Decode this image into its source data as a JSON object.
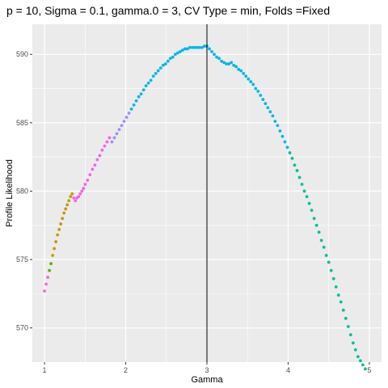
{
  "chart_data": {
    "type": "scatter",
    "title": "p = 10, Sigma = 0.1, gamma.0 = 3, CV Type = min, Folds =Fixed",
    "xlabel": "Gamma",
    "ylabel": "Profile Likelihood",
    "xlim": [
      0.85,
      5.15
    ],
    "ylim": [
      567.5,
      592.2
    ],
    "x_ticks": [
      1,
      2,
      3,
      4,
      5
    ],
    "y_ticks": [
      570,
      575,
      580,
      585,
      590
    ],
    "x_tick_labels": [
      "1",
      "2",
      "3",
      "4",
      "5"
    ],
    "y_tick_labels": [
      "570",
      "575",
      "580",
      "585",
      "590"
    ],
    "grid": true,
    "legend": "none",
    "vline": {
      "x": 3,
      "color": "#000000"
    },
    "panel_background": "#ebebeb",
    "gridline_color": "#ffffff",
    "series": [
      {
        "color": "#f066ea",
        "points": [
          [
            1.0,
            572.7
          ],
          [
            1.02,
            573.2
          ],
          [
            1.04,
            573.7
          ]
        ]
      },
      {
        "color": "#53b400",
        "points": [
          [
            1.06,
            574.2
          ],
          [
            1.08,
            574.7
          ]
        ]
      },
      {
        "color": "#c49a00",
        "points": [
          [
            1.1,
            575.3
          ],
          [
            1.12,
            575.8
          ],
          [
            1.14,
            576.3
          ],
          [
            1.16,
            576.8
          ],
          [
            1.18,
            577.2
          ],
          [
            1.2,
            577.6
          ],
          [
            1.22,
            578.0
          ],
          [
            1.24,
            578.4
          ],
          [
            1.26,
            578.7
          ],
          [
            1.28,
            579.0
          ],
          [
            1.3,
            579.3
          ],
          [
            1.32,
            579.6
          ],
          [
            1.34,
            579.8
          ]
        ]
      },
      {
        "color": "#f066ea",
        "points": [
          [
            1.36,
            579.5
          ],
          [
            1.38,
            579.3
          ],
          [
            1.4,
            579.5
          ],
          [
            1.42,
            579.6
          ],
          [
            1.44,
            579.8
          ],
          [
            1.46,
            580.0
          ],
          [
            1.48,
            580.2
          ],
          [
            1.5,
            580.5
          ],
          [
            1.53,
            580.8
          ],
          [
            1.56,
            581.2
          ],
          [
            1.59,
            581.6
          ],
          [
            1.62,
            581.9
          ],
          [
            1.65,
            582.3
          ],
          [
            1.68,
            582.6
          ],
          [
            1.71,
            583.0
          ],
          [
            1.74,
            583.3
          ],
          [
            1.77,
            583.6
          ],
          [
            1.8,
            583.9
          ]
        ]
      },
      {
        "color": "#a58aff",
        "points": [
          [
            1.83,
            583.6
          ],
          [
            1.86,
            583.9
          ],
          [
            1.89,
            584.2
          ],
          [
            1.92,
            584.5
          ],
          [
            1.95,
            584.8
          ],
          [
            1.98,
            585.1
          ],
          [
            2.01,
            585.4
          ],
          [
            2.04,
            585.7
          ]
        ]
      },
      {
        "color": "#00b6eb",
        "points": [
          [
            2.07,
            586.0
          ],
          [
            2.1,
            586.3
          ],
          [
            2.13,
            586.6
          ],
          [
            2.16,
            586.9
          ],
          [
            2.19,
            587.1
          ],
          [
            2.22,
            587.4
          ],
          [
            2.25,
            587.7
          ],
          [
            2.28,
            587.9
          ],
          [
            2.31,
            588.1
          ],
          [
            2.34,
            588.4
          ],
          [
            2.37,
            588.6
          ],
          [
            2.4,
            588.8
          ],
          [
            2.43,
            589.0
          ],
          [
            2.46,
            589.2
          ],
          [
            2.49,
            589.3
          ],
          [
            2.52,
            589.5
          ],
          [
            2.55,
            589.7
          ],
          [
            2.58,
            589.8
          ],
          [
            2.61,
            590.0
          ],
          [
            2.64,
            590.1
          ],
          [
            2.67,
            590.2
          ],
          [
            2.7,
            590.3
          ],
          [
            2.73,
            590.4
          ],
          [
            2.76,
            590.4
          ],
          [
            2.79,
            590.5
          ],
          [
            2.82,
            590.5
          ],
          [
            2.85,
            590.5
          ],
          [
            2.88,
            590.5
          ],
          [
            2.91,
            590.5
          ],
          [
            2.94,
            590.5
          ],
          [
            2.97,
            590.6
          ],
          [
            3.0,
            590.6
          ],
          [
            3.03,
            590.4
          ],
          [
            3.06,
            590.2
          ],
          [
            3.09,
            590.0
          ],
          [
            3.12,
            589.8
          ],
          [
            3.15,
            589.7
          ],
          [
            3.18,
            589.5
          ],
          [
            3.21,
            589.4
          ],
          [
            3.24,
            589.3
          ],
          [
            3.27,
            589.3
          ],
          [
            3.3,
            589.4
          ],
          [
            3.33,
            589.2
          ],
          [
            3.36,
            589.1
          ],
          [
            3.39,
            588.9
          ],
          [
            3.42,
            588.8
          ],
          [
            3.45,
            588.6
          ],
          [
            3.48,
            588.4
          ],
          [
            3.51,
            588.2
          ],
          [
            3.54,
            588.0
          ],
          [
            3.57,
            587.8
          ],
          [
            3.6,
            587.5
          ],
          [
            3.63,
            587.3
          ],
          [
            3.66,
            587.0
          ],
          [
            3.69,
            586.7
          ],
          [
            3.72,
            586.4
          ],
          [
            3.75,
            586.1
          ],
          [
            3.78,
            585.8
          ],
          [
            3.81,
            585.5
          ],
          [
            3.84,
            585.1
          ],
          [
            3.87,
            584.8
          ],
          [
            3.9,
            584.4
          ],
          [
            3.93,
            584.0
          ],
          [
            3.96,
            583.6
          ],
          [
            3.99,
            583.2
          ]
        ]
      },
      {
        "color": "#00c094",
        "points": [
          [
            4.02,
            582.8
          ],
          [
            4.05,
            582.4
          ],
          [
            4.08,
            581.9
          ],
          [
            4.11,
            581.5
          ],
          [
            4.14,
            581.0
          ],
          [
            4.17,
            580.5
          ],
          [
            4.2,
            580.0
          ],
          [
            4.23,
            579.6
          ],
          [
            4.26,
            579.1
          ],
          [
            4.29,
            578.6
          ],
          [
            4.32,
            578.0
          ],
          [
            4.35,
            577.5
          ],
          [
            4.38,
            577.0
          ],
          [
            4.41,
            576.4
          ],
          [
            4.44,
            575.9
          ],
          [
            4.47,
            575.3
          ],
          [
            4.5,
            574.8
          ],
          [
            4.53,
            574.2
          ],
          [
            4.56,
            573.6
          ],
          [
            4.59,
            573.0
          ],
          [
            4.62,
            572.4
          ],
          [
            4.65,
            571.9
          ],
          [
            4.68,
            571.3
          ],
          [
            4.71,
            570.7
          ],
          [
            4.74,
            570.1
          ],
          [
            4.77,
            569.5
          ],
          [
            4.8,
            568.9
          ],
          [
            4.83,
            568.4
          ],
          [
            4.86,
            567.9
          ],
          [
            4.89,
            567.6
          ],
          [
            4.92,
            567.3
          ],
          [
            4.95,
            567.0
          ],
          [
            4.98,
            566.8
          ]
        ]
      }
    ]
  }
}
